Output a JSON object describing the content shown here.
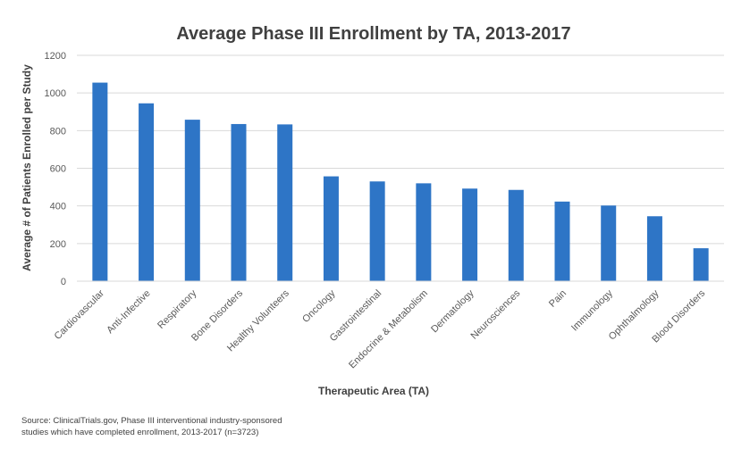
{
  "chart_data": {
    "type": "bar",
    "title": "Average Phase III Enrollment by TA, 2013-2017",
    "xlabel": "Therapeutic Area (TA)",
    "ylabel": "Average # of Patients Enrolled per Study",
    "ylim": [
      0,
      1200
    ],
    "yticks": [
      "0",
      "200",
      "400",
      "600",
      "800",
      "1000",
      "1200"
    ],
    "grid": true,
    "bar_color": "#2e75c6",
    "categories": [
      "Cardiovascular",
      "Anti-Infective",
      "Respiratory",
      "Bone Disorders",
      "Healthy Volunteers",
      "Oncology",
      "Gastrointestinal",
      "Endocrine & Metabolism",
      "Dermatology",
      "Neurosciences",
      "Pain",
      "Immunology",
      "Ophthalmology",
      "Blood Disorders"
    ],
    "values": [
      1055,
      945,
      858,
      835,
      833,
      557,
      530,
      520,
      492,
      485,
      423,
      402,
      345,
      175
    ],
    "source_lines": [
      "Source: ClinicalTrials.gov, Phase III interventional industry-sponsored",
      "studies which have completed enrollment, 2013-2017 (n=3723)"
    ]
  }
}
